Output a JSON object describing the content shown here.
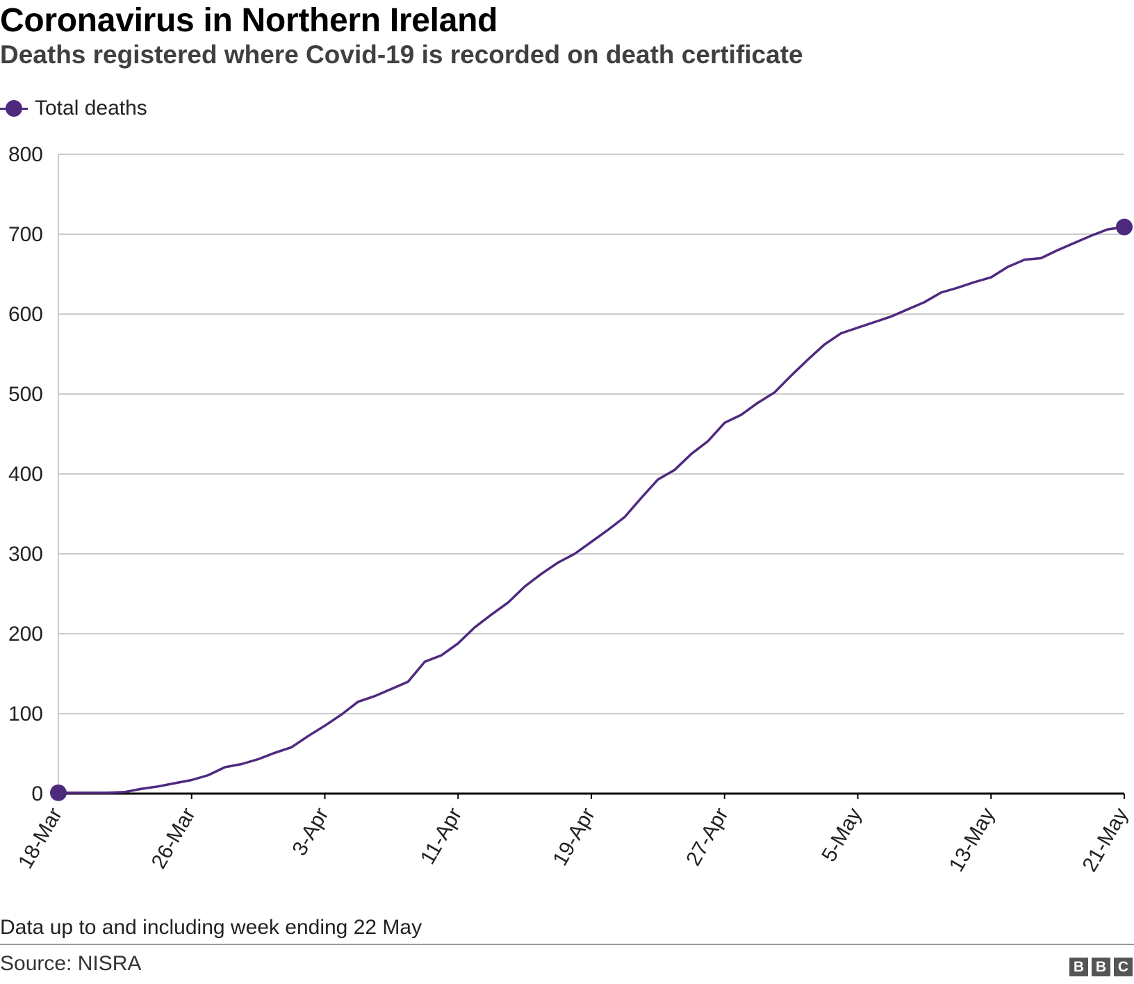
{
  "title": "Coronavirus in Northern Ireland",
  "subtitle": "Deaths registered where Covid-19 is recorded on death certificate",
  "footnote": "Data up to and including week ending 22 May",
  "source": "Source: NISRA",
  "logo_letters": [
    "B",
    "B",
    "C"
  ],
  "colors": {
    "series": "#4e2a7f",
    "grid": "#cccccc",
    "baseline": "#000000"
  },
  "chart_data": {
    "type": "line",
    "title": "Coronavirus in Northern Ireland",
    "subtitle": "Deaths registered where Covid-19 is recorded on death certificate",
    "xlabel": "",
    "ylabel": "",
    "ylim": [
      0,
      800
    ],
    "yticks": [
      0,
      100,
      200,
      300,
      400,
      500,
      600,
      700,
      800
    ],
    "xticks": [
      "18-Mar",
      "26-Mar",
      "3-Apr",
      "11-Apr",
      "19-Apr",
      "27-Apr",
      "5-May",
      "13-May",
      "21-May"
    ],
    "xrange": [
      "18-Mar",
      "21-May"
    ],
    "grid": true,
    "legend_position": "top-left",
    "series": [
      {
        "name": "Total deaths",
        "color": "#4e2a7f",
        "markers": "first-and-last",
        "x": [
          "18-Mar",
          "19-Mar",
          "20-Mar",
          "21-Mar",
          "22-Mar",
          "23-Mar",
          "24-Mar",
          "25-Mar",
          "26-Mar",
          "27-Mar",
          "28-Mar",
          "29-Mar",
          "30-Mar",
          "31-Mar",
          "1-Apr",
          "2-Apr",
          "3-Apr",
          "4-Apr",
          "5-Apr",
          "6-Apr",
          "7-Apr",
          "8-Apr",
          "9-Apr",
          "10-Apr",
          "11-Apr",
          "12-Apr",
          "13-Apr",
          "14-Apr",
          "15-Apr",
          "16-Apr",
          "17-Apr",
          "18-Apr",
          "19-Apr",
          "20-Apr",
          "21-Apr",
          "22-Apr",
          "23-Apr",
          "24-Apr",
          "25-Apr",
          "26-Apr",
          "27-Apr",
          "28-Apr",
          "29-Apr",
          "30-Apr",
          "1-May",
          "2-May",
          "3-May",
          "4-May",
          "5-May",
          "6-May",
          "7-May",
          "8-May",
          "9-May",
          "10-May",
          "11-May",
          "12-May",
          "13-May",
          "14-May",
          "15-May",
          "16-May",
          "17-May",
          "18-May",
          "19-May",
          "20-May",
          "21-May"
        ],
        "values": [
          1,
          1,
          1,
          1,
          2,
          6,
          9,
          13,
          17,
          23,
          33,
          37,
          43,
          51,
          58,
          72,
          85,
          99,
          115,
          122,
          131,
          140,
          165,
          173,
          188,
          208,
          224,
          239,
          259,
          275,
          289,
          300,
          315,
          330,
          346,
          370,
          393,
          405,
          425,
          441,
          464,
          474,
          489,
          502,
          523,
          543,
          562,
          576,
          583,
          590,
          597,
          606,
          615,
          627,
          633,
          640,
          646,
          659,
          668,
          670,
          680,
          689,
          698,
          706,
          709
        ]
      }
    ]
  }
}
